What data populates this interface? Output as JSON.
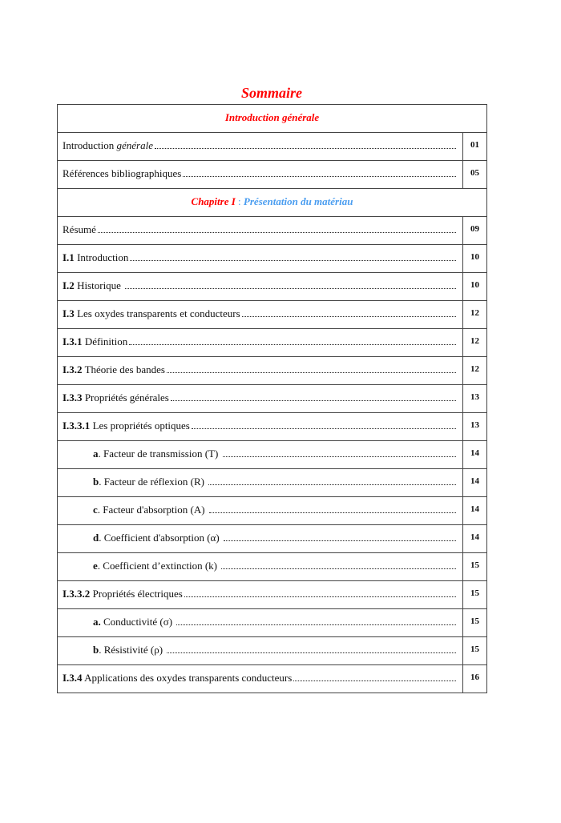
{
  "title": "Sommaire",
  "intro_header": "Introduction générale",
  "chapter_header": {
    "prefix": "Chapitre I",
    "sep": " : ",
    "title": "Présentation du matériau"
  },
  "intro_rows": [
    {
      "num": "",
      "text": "Introduction ",
      "italic": "générale",
      "page": "01"
    },
    {
      "num": "",
      "text": "Références bibliographiques",
      "italic": "",
      "page": "05"
    }
  ],
  "rows": [
    {
      "num": "",
      "text": "Résumé",
      "page": "09",
      "indent": false
    },
    {
      "num": "I.1",
      "text": " Introduction",
      "page": "10",
      "indent": false
    },
    {
      "num": "I.2",
      "text": " Historique ",
      "page": "10",
      "indent": false
    },
    {
      "num": "I.3",
      "text": " Les oxydes transparents et conducteurs",
      "page": "12",
      "indent": false
    },
    {
      "num": "I.3.1",
      "text": " Définition",
      "page": "12",
      "indent": false
    },
    {
      "num": "I.3.2",
      "text": " Théorie des bandes",
      "page": "12",
      "indent": false
    },
    {
      "num": "I.3.3",
      "text": " Propriétés générales",
      "page": "13",
      "indent": false
    },
    {
      "num": "I.3.3.1",
      "text": " Les propriétés optiques",
      "page": "13",
      "indent": false
    },
    {
      "num": "a",
      "text": ". Facteur de transmission (T) ",
      "page": "14",
      "indent": true
    },
    {
      "num": "b",
      "text": ". Facteur de réflexion (R) ",
      "page": "14",
      "indent": true
    },
    {
      "num": "c",
      "text": ". Facteur d'absorption (A) ",
      "page": "14",
      "indent": true
    },
    {
      "num": "d",
      "text": ". Coefficient d'absorption (α) ",
      "page": "14",
      "indent": true
    },
    {
      "num": "e",
      "text": ". Coefficient d’extinction (k) ",
      "page": "15",
      "indent": true
    },
    {
      "num": "I.3.3.2",
      "text": " Propriétés électriques",
      "page": "15",
      "indent": false
    },
    {
      "num": "a.",
      "text": " Conductivité (σ) ",
      "page": "15",
      "indent": true
    },
    {
      "num": "b",
      "text": ". Résistivité (ρ) ",
      "page": "15",
      "indent": true
    },
    {
      "num": "I.3.4",
      "text": " Applications des oxydes transparents conducteurs",
      "page": "16",
      "indent": false
    }
  ]
}
